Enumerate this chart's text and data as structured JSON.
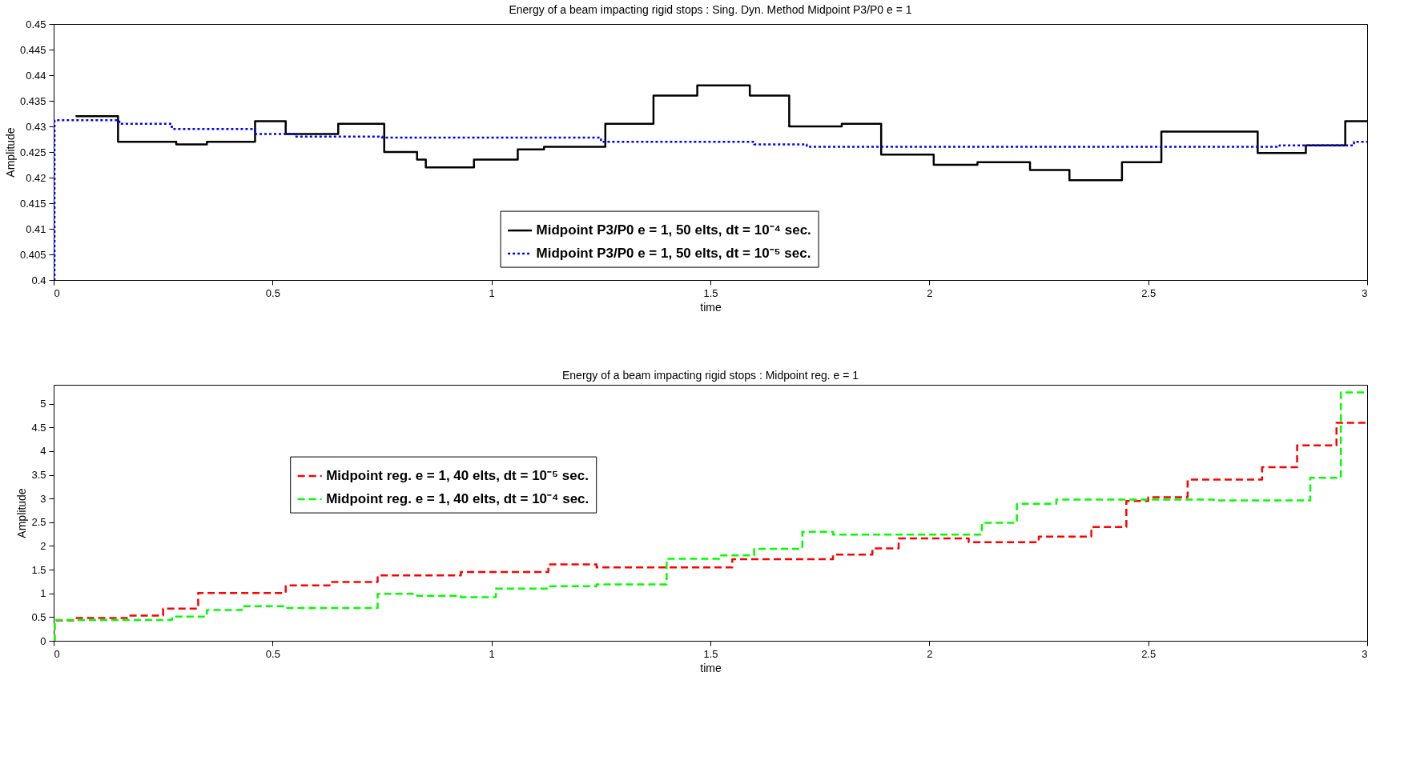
{
  "chart_data": [
    {
      "type": "step",
      "title": "Energy of a beam impacting rigid stops : Sing. Dyn. Method Midpoint P3/P0 e = 1",
      "xlabel": "time",
      "ylabel": "Amplitude",
      "xlim": [
        0,
        3
      ],
      "xticks": [
        0,
        0.5,
        1,
        1.5,
        2,
        2.5,
        3
      ],
      "ylim": [
        0.4,
        0.45
      ],
      "yticks": [
        0.4,
        0.405,
        0.41,
        0.415,
        0.42,
        0.425,
        0.43,
        0.435,
        0.44,
        0.445,
        0.45
      ],
      "grid": false,
      "legend": "bottom",
      "series": [
        {
          "name": "Midpoint P3/P0 e = 1, 50 elts, dt = 10⁻⁴ sec.",
          "color": "#000000",
          "line_style": "solid",
          "x": [
            0.05,
            0.147,
            0.28,
            0.35,
            0.46,
            0.53,
            0.65,
            0.755,
            0.83,
            0.85,
            0.96,
            1.06,
            1.12,
            1.26,
            1.37,
            1.47,
            1.59,
            1.68,
            1.8,
            1.89,
            2.01,
            2.11,
            2.23,
            2.32,
            2.44,
            2.53,
            2.75,
            2.86,
            2.95,
            3
          ],
          "values": [
            0.432,
            0.427,
            0.4265,
            0.427,
            0.431,
            0.4285,
            0.4305,
            0.425,
            0.4235,
            0.422,
            0.4235,
            0.4255,
            0.426,
            0.4305,
            0.436,
            0.438,
            0.436,
            0.43,
            0.4305,
            0.4245,
            0.4225,
            0.423,
            0.4215,
            0.4195,
            0.423,
            0.429,
            0.4248,
            0.4263,
            0.431,
            0.431
          ]
        },
        {
          "name": "Midpoint P3/P0 e = 1, 50 elts, dt = 10⁻⁵ sec.",
          "color": "#0000ff",
          "line_style": "dotted",
          "x": [
            0,
            0.002,
            0.15,
            0.27,
            0.46,
            0.55,
            0.75,
            1.25,
            1.6,
            1.72,
            2.8,
            2.97,
            3
          ],
          "values": [
            0.4,
            0.4312,
            0.4305,
            0.4295,
            0.4285,
            0.428,
            0.4278,
            0.427,
            0.4265,
            0.426,
            0.4263,
            0.427,
            0.427
          ]
        }
      ]
    },
    {
      "type": "step",
      "title": "Energy of a beam impacting rigid stops : Midpoint reg. e = 1",
      "xlabel": "time",
      "ylabel": "Amplitude",
      "xlim": [
        0,
        3
      ],
      "xticks": [
        0,
        0.5,
        1,
        1.5,
        2,
        2.5,
        3
      ],
      "ylim": [
        0,
        5.4
      ],
      "yticks": [
        0,
        0.5,
        1,
        1.5,
        2,
        2.5,
        3,
        3.5,
        4,
        4.5,
        5
      ],
      "grid": false,
      "legend": "left",
      "series": [
        {
          "name": "Midpoint reg. e = 1, 40 elts, dt = 10⁻⁵ sec.",
          "color": "#ff0000",
          "line_style": "dashed",
          "x": [
            0,
            0.002,
            0.05,
            0.17,
            0.25,
            0.33,
            0.53,
            0.63,
            0.74,
            0.93,
            1.13,
            1.24,
            1.55,
            1.78,
            1.87,
            1.93,
            2.09,
            2.25,
            2.37,
            2.45,
            2.5,
            2.59,
            2.76,
            2.84,
            2.93,
            3
          ],
          "values": [
            0,
            0.43,
            0.48,
            0.53,
            0.68,
            1.01,
            1.17,
            1.24,
            1.38,
            1.45,
            1.61,
            1.55,
            1.72,
            1.82,
            1.95,
            2.16,
            2.08,
            2.2,
            2.4,
            2.95,
            3.03,
            3.4,
            3.66,
            4.12,
            4.6,
            4.6
          ]
        },
        {
          "name": "Midpoint reg. e = 1, 40 elts, dt = 10⁻⁴ sec.",
          "color": "#00ff00",
          "line_style": "dashed",
          "x": [
            0,
            0.002,
            0.27,
            0.35,
            0.43,
            0.53,
            0.74,
            0.83,
            0.93,
            1.01,
            1.13,
            1.24,
            1.4,
            1.52,
            1.6,
            1.71,
            1.78,
            2.12,
            2.2,
            2.29,
            2.65,
            2.87,
            2.94,
            3
          ],
          "values": [
            0,
            0.44,
            0.51,
            0.65,
            0.73,
            0.69,
            0.99,
            0.95,
            0.92,
            1.1,
            1.15,
            1.19,
            1.73,
            1.8,
            1.94,
            2.3,
            2.24,
            2.49,
            2.89,
            2.98,
            2.96,
            3.44,
            5.24,
            5.24
          ]
        }
      ]
    }
  ]
}
